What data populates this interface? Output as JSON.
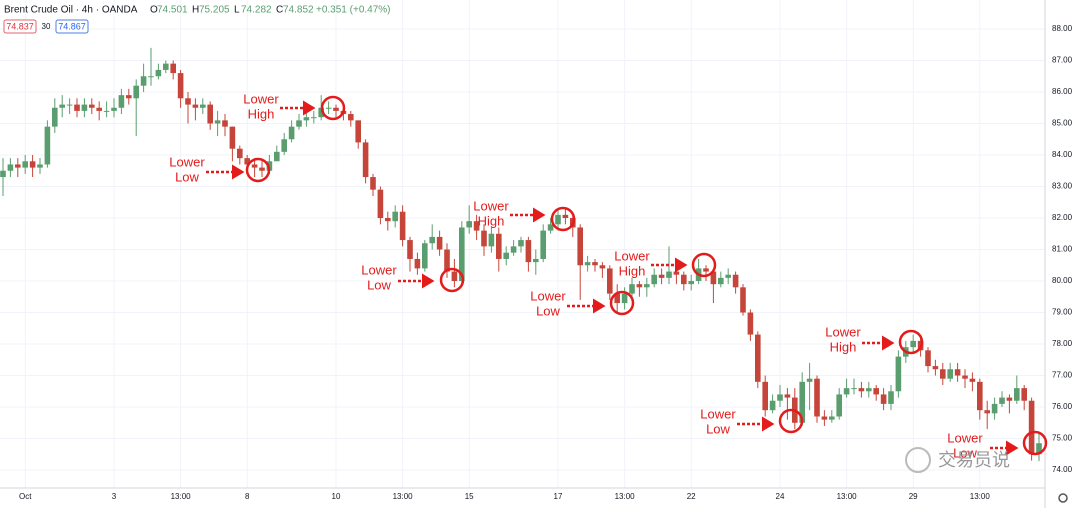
{
  "chart_data": {
    "type": "candlestick",
    "header": {
      "symbol": "Brent Crude Oil · 4h · OANDA",
      "ohlc": [
        {
          "key": "O",
          "value": "74.501"
        },
        {
          "key": "H",
          "value": "75.205"
        },
        {
          "key": "L",
          "value": "74.282"
        },
        {
          "key": "C",
          "value": "74.852"
        }
      ],
      "change": "+0.351 (+0.47%)",
      "sell": "74.837",
      "spread": "30",
      "buy": "74.867"
    },
    "categories": [
      null,
      null,
      null,
      "Oct",
      null,
      null,
      null,
      null,
      null,
      null,
      null,
      null,
      null,
      null,
      null,
      "3",
      null,
      null,
      null,
      null,
      null,
      null,
      null,
      null,
      "13:00",
      null,
      null,
      null,
      null,
      null,
      null,
      null,
      null,
      "8",
      null,
      null,
      null,
      null,
      null,
      null,
      null,
      null,
      null,
      null,
      null,
      "10",
      null,
      null,
      null,
      null,
      null,
      null,
      null,
      null,
      "13:00",
      null,
      null,
      null,
      null,
      null,
      null,
      null,
      null,
      "15",
      null,
      null,
      null,
      null,
      null,
      null,
      null,
      null,
      null,
      null,
      null,
      "17",
      null,
      null,
      null,
      null,
      null,
      null,
      null,
      null,
      "13:00",
      null,
      null,
      null,
      null,
      null,
      null,
      null,
      null,
      "22",
      null,
      null,
      null,
      null,
      null,
      null,
      null,
      null,
      null,
      null,
      null,
      "24",
      null,
      null,
      null,
      null,
      null,
      null,
      null,
      null,
      "13:00",
      null,
      null,
      null,
      null,
      null,
      null,
      null,
      null,
      "29",
      null,
      null,
      null,
      null,
      null,
      null,
      null,
      null,
      "13:00",
      null,
      null,
      null,
      null,
      null,
      null,
      null,
      null
    ],
    "open": [
      83.3,
      83.5,
      83.7,
      83.6,
      83.8,
      83.6,
      83.7,
      84.9,
      85.5,
      85.6,
      85.6,
      85.4,
      85.6,
      85.5,
      85.4,
      85.4,
      85.5,
      85.9,
      85.8,
      86.2,
      86.5,
      86.5,
      86.7,
      86.9,
      86.6,
      85.8,
      85.6,
      85.5,
      85.6,
      85.0,
      85.1,
      84.9,
      84.2,
      83.9,
      83.7,
      83.6,
      83.5,
      83.8,
      84.1,
      84.5,
      84.9,
      85.1,
      85.2,
      85.2,
      85.5,
      85.5,
      85.4,
      85.3,
      85.1,
      84.4,
      83.3,
      82.9,
      82.0,
      81.9,
      82.2,
      81.3,
      80.7,
      80.4,
      81.2,
      81.4,
      81.0,
      80.3,
      80.0,
      81.7,
      81.9,
      81.6,
      81.1,
      81.5,
      80.7,
      80.9,
      81.1,
      81.3,
      80.6,
      80.7,
      81.6,
      81.8,
      82.1,
      82.0,
      81.7,
      80.5,
      80.6,
      80.5,
      80.4,
      79.6,
      79.3,
      79.6,
      79.9,
      79.8,
      79.9,
      80.2,
      80.1,
      80.3,
      80.2,
      79.9,
      80.0,
      80.4,
      80.3,
      79.9,
      80.1,
      80.2,
      79.8,
      79.0,
      78.3,
      76.8,
      75.9,
      76.2,
      76.4,
      76.3,
      75.5,
      76.8,
      76.9,
      75.7,
      75.6,
      75.7,
      76.4,
      76.6,
      76.6,
      76.5,
      76.6,
      76.4,
      76.1,
      76.5,
      77.6,
      77.9,
      78.1,
      77.8,
      77.3,
      77.2,
      76.9,
      77.2,
      77.0,
      76.9,
      76.8,
      75.9,
      75.8,
      76.1,
      76.3,
      76.2,
      76.6,
      76.2,
      74.501
    ],
    "high": [
      83.9,
      83.9,
      83.9,
      84.0,
      84.0,
      83.9,
      85.1,
      85.8,
      85.9,
      85.8,
      85.8,
      85.8,
      85.8,
      85.7,
      85.7,
      85.8,
      86.1,
      86.1,
      86.4,
      86.9,
      87.4,
      86.9,
      87.0,
      87.0,
      86.7,
      86.0,
      85.8,
      85.8,
      85.7,
      85.4,
      85.3,
      84.9,
      84.3,
      84.0,
      83.9,
      83.8,
      84.0,
      84.3,
      84.7,
      85.1,
      85.3,
      85.4,
      85.4,
      85.9,
      85.7,
      85.6,
      85.6,
      85.4,
      85.1,
      84.5,
      83.4,
      83.0,
      82.2,
      82.4,
      82.4,
      81.4,
      80.9,
      81.3,
      81.8,
      81.6,
      81.2,
      80.7,
      81.9,
      82.4,
      82.1,
      81.8,
      81.7,
      81.7,
      81.1,
      81.3,
      81.4,
      81.4,
      81.0,
      81.8,
      82.0,
      82.3,
      82.3,
      82.1,
      81.8,
      80.8,
      80.7,
      80.6,
      80.5,
      79.9,
      79.8,
      80.1,
      80.0,
      80.1,
      80.4,
      80.4,
      81.1,
      80.4,
      80.3,
      80.2,
      80.7,
      80.5,
      80.4,
      80.3,
      80.4,
      80.3,
      79.9,
      79.1,
      78.4,
      77.0,
      76.4,
      76.7,
      76.6,
      76.6,
      77.1,
      77.4,
      77.0,
      75.9,
      75.9,
      76.6,
      76.9,
      76.9,
      76.8,
      76.8,
      76.7,
      76.6,
      76.7,
      77.8,
      78.1,
      78.3,
      78.2,
      77.9,
      77.5,
      77.4,
      77.4,
      77.4,
      77.2,
      77.1,
      76.9,
      76.2,
      76.3,
      76.5,
      76.4,
      77.0,
      76.7,
      76.3,
      75.205
    ],
    "low": [
      82.7,
      83.3,
      83.3,
      83.4,
      83.3,
      83.4,
      83.6,
      84.7,
      85.2,
      85.3,
      85.2,
      85.2,
      85.3,
      85.1,
      85.2,
      85.2,
      85.3,
      85.6,
      84.6,
      86.0,
      86.2,
      86.4,
      86.6,
      86.4,
      85.5,
      85.0,
      85.1,
      85.3,
      84.8,
      84.6,
      84.6,
      83.8,
      83.7,
      83.4,
      83.3,
      83.3,
      83.4,
      83.9,
      84.0,
      84.4,
      84.8,
      84.9,
      85.0,
      85.1,
      85.3,
      85.2,
      85.1,
      84.9,
      84.2,
      83.1,
      82.7,
      81.8,
      81.6,
      81.7,
      81.1,
      80.3,
      80.2,
      80.3,
      81.0,
      80.8,
      80.1,
      79.8,
      79.9,
      81.5,
      81.3,
      80.8,
      80.9,
      80.3,
      80.5,
      80.8,
      80.9,
      80.3,
      80.2,
      80.6,
      81.5,
      81.6,
      81.8,
      81.4,
      79.4,
      80.3,
      80.3,
      80.1,
      79.4,
      79.0,
      79.1,
      79.5,
      79.5,
      79.5,
      79.8,
      79.9,
      79.9,
      79.9,
      79.7,
      79.7,
      79.9,
      80.0,
      79.3,
      79.8,
      79.9,
      79.6,
      78.9,
      78.1,
      76.6,
      75.7,
      75.8,
      76.0,
      75.6,
      75.3,
      75.4,
      75.9,
      75.5,
      75.4,
      75.5,
      75.6,
      76.3,
      76.4,
      76.3,
      76.3,
      76.2,
      75.9,
      75.9,
      76.3,
      77.4,
      77.7,
      77.6,
      77.1,
      77.0,
      76.7,
      76.8,
      76.8,
      76.6,
      76.5,
      75.6,
      75.3,
      75.6,
      76.0,
      75.8,
      76.1,
      75.9,
      74.3,
      74.282
    ],
    "close": [
      83.5,
      83.7,
      83.6,
      83.8,
      83.6,
      83.7,
      84.9,
      85.5,
      85.6,
      85.6,
      85.4,
      85.6,
      85.5,
      85.4,
      85.4,
      85.5,
      85.9,
      85.8,
      86.2,
      86.5,
      86.5,
      86.7,
      86.9,
      86.6,
      85.8,
      85.6,
      85.5,
      85.6,
      85.0,
      85.1,
      84.9,
      84.2,
      83.9,
      83.7,
      83.6,
      83.5,
      83.8,
      84.1,
      84.5,
      84.9,
      85.1,
      85.2,
      85.2,
      85.5,
      85.5,
      85.4,
      85.3,
      85.1,
      84.4,
      83.3,
      82.9,
      82.0,
      81.9,
      82.2,
      81.3,
      80.7,
      80.4,
      81.2,
      81.4,
      81.0,
      80.3,
      80.0,
      81.7,
      81.9,
      81.6,
      81.1,
      81.5,
      80.7,
      80.9,
      81.1,
      81.3,
      80.6,
      80.7,
      81.6,
      81.8,
      82.1,
      82.0,
      81.7,
      80.5,
      80.6,
      80.5,
      80.4,
      79.6,
      79.3,
      79.6,
      79.9,
      79.8,
      79.9,
      80.2,
      80.1,
      80.3,
      80.2,
      79.9,
      80.0,
      80.4,
      80.3,
      79.9,
      80.1,
      80.2,
      79.8,
      79.0,
      78.3,
      76.8,
      75.9,
      76.2,
      76.4,
      76.3,
      75.5,
      76.8,
      76.9,
      75.7,
      75.6,
      75.7,
      76.4,
      76.6,
      76.6,
      76.5,
      76.6,
      76.4,
      76.1,
      76.5,
      77.6,
      77.9,
      78.1,
      77.8,
      77.3,
      77.2,
      76.9,
      77.2,
      77.0,
      76.9,
      76.8,
      75.9,
      75.8,
      76.1,
      76.3,
      76.2,
      76.6,
      76.2,
      74.5,
      74.852
    ],
    "up_color": "#5a9e6f",
    "down_color": "#c6453a",
    "ylim": [
      73.43,
      88.92
    ],
    "yticks": [
      {
        "value": 74,
        "label": "74.00"
      },
      {
        "value": 75,
        "label": "75.00"
      },
      {
        "value": 76,
        "label": "76.00"
      },
      {
        "value": 77,
        "label": "77.00"
      },
      {
        "value": 78,
        "label": "78.00"
      },
      {
        "value": 79,
        "label": "79.00"
      },
      {
        "value": 80,
        "label": "80.00"
      },
      {
        "value": 81,
        "label": "81.00"
      },
      {
        "value": 82,
        "label": "82.00"
      },
      {
        "value": 83,
        "label": "83.00"
      },
      {
        "value": 84,
        "label": "84.00"
      },
      {
        "value": 85,
        "label": "85.00"
      },
      {
        "value": 86,
        "label": "86.00"
      },
      {
        "value": 87,
        "label": "87.00"
      },
      {
        "value": 88,
        "label": "88.00"
      }
    ],
    "grid": true,
    "annotation_color": "#e31b1b",
    "annotations": [
      {
        "lines": [
          "Lower",
          "High"
        ]
      },
      {
        "lines": [
          "Lower",
          "Low"
        ]
      },
      {
        "lines": [
          "Lower",
          "High"
        ]
      },
      {
        "lines": [
          "Lower",
          "Low"
        ]
      },
      {
        "lines": [
          "Lower",
          "Low"
        ]
      },
      {
        "lines": [
          "Lower",
          "High"
        ]
      },
      {
        "lines": [
          "Lower",
          "High"
        ]
      },
      {
        "lines": [
          "Lower",
          "Low"
        ]
      },
      {
        "lines": [
          "Lower",
          "Low"
        ]
      }
    ],
    "watermark": "交易员说"
  }
}
